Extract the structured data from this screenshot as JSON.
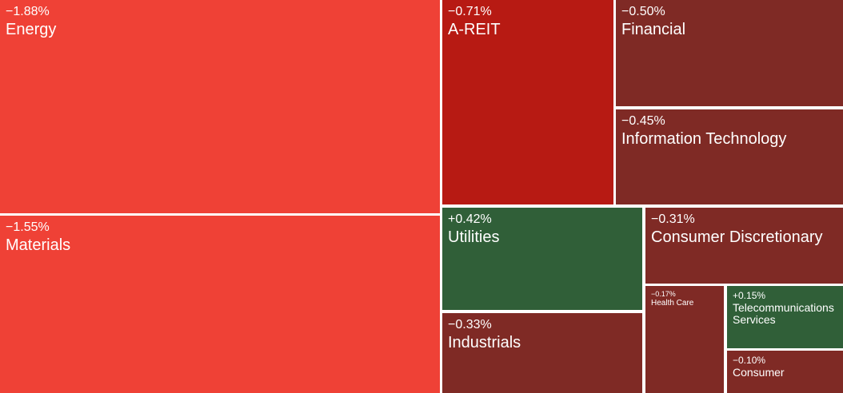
{
  "chart_data": {
    "type": "treemap",
    "items": [
      {
        "name": "Energy",
        "change": -1.88,
        "label": "-1.88%",
        "color": "#EF4136"
      },
      {
        "name": "Materials",
        "change": -1.55,
        "label": "-1.55%",
        "color": "#EF4136"
      },
      {
        "name": "A-REIT",
        "change": -0.71,
        "label": "-0.71%",
        "color": "#B71A13"
      },
      {
        "name": "Financial",
        "change": -0.5,
        "label": "-0.50%",
        "color": "#7F2A25"
      },
      {
        "name": "Information Technology",
        "change": -0.45,
        "label": "-0.45%",
        "color": "#7F2A25"
      },
      {
        "name": "Utilities",
        "change": 0.42,
        "label": "+0.42%",
        "color": "#305F38"
      },
      {
        "name": "Consumer Discretionary",
        "change": -0.31,
        "label": "-0.31%",
        "color": "#7F2A25"
      },
      {
        "name": "Industrials",
        "change": -0.33,
        "label": "-0.33%",
        "color": "#7F2A25"
      },
      {
        "name": "Health Care",
        "change": -0.17,
        "label": "-0.17%",
        "color": "#7F2A25"
      },
      {
        "name": "Telecommunications Services",
        "change": 0.15,
        "label": "+0.15%",
        "color": "#305F38"
      },
      {
        "name": "Consumer",
        "change": -0.1,
        "label": "-0.10%",
        "color": "#7F2A25"
      }
    ]
  }
}
